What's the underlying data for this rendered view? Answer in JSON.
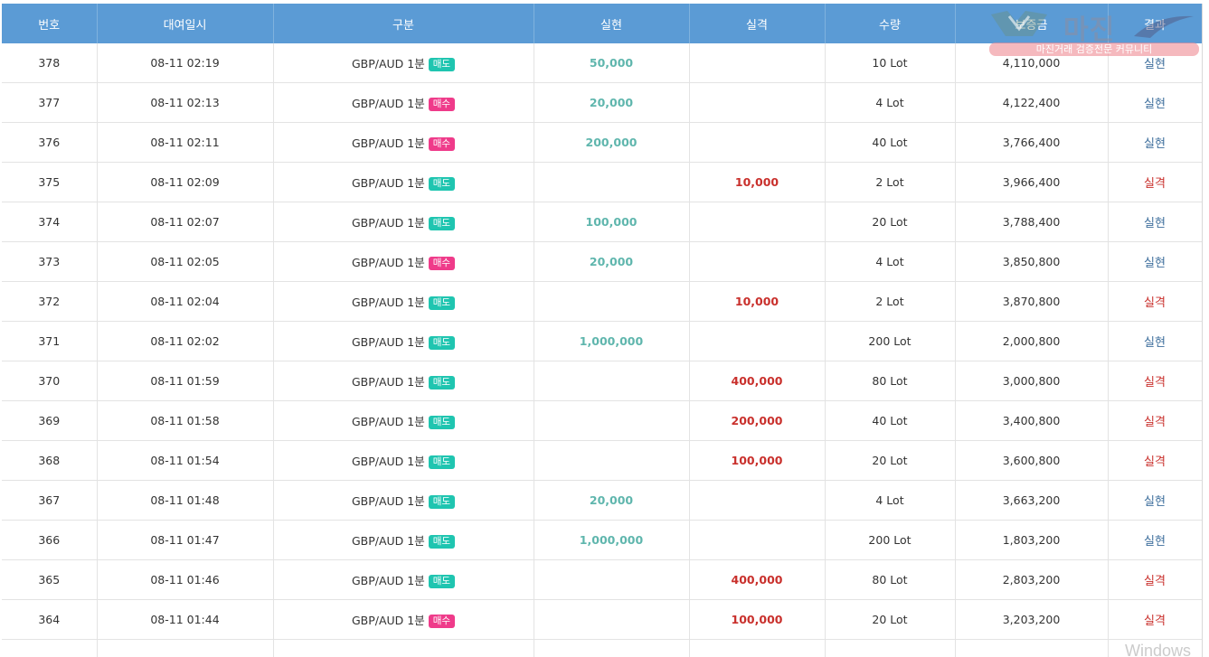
{
  "table": {
    "headers": [
      "번호",
      "대여일시",
      "구분",
      "실현",
      "실격",
      "수량",
      "보증금",
      "결과"
    ],
    "rows": [
      {
        "no": "378",
        "datetime": "08-11 02:19",
        "pair": "GBP/AUD 1분",
        "side": "매도",
        "side_type": "sell",
        "profit": "50,000",
        "loss": "",
        "qty": "10 Lot",
        "deposit": "4,110,000",
        "result": "실현",
        "result_type": "win"
      },
      {
        "no": "377",
        "datetime": "08-11 02:13",
        "pair": "GBP/AUD 1분",
        "side": "매수",
        "side_type": "buy",
        "profit": "20,000",
        "loss": "",
        "qty": "4 Lot",
        "deposit": "4,122,400",
        "result": "실현",
        "result_type": "win"
      },
      {
        "no": "376",
        "datetime": "08-11 02:11",
        "pair": "GBP/AUD 1분",
        "side": "매수",
        "side_type": "buy",
        "profit": "200,000",
        "loss": "",
        "qty": "40 Lot",
        "deposit": "3,766,400",
        "result": "실현",
        "result_type": "win"
      },
      {
        "no": "375",
        "datetime": "08-11 02:09",
        "pair": "GBP/AUD 1분",
        "side": "매도",
        "side_type": "sell",
        "profit": "",
        "loss": "10,000",
        "qty": "2 Lot",
        "deposit": "3,966,400",
        "result": "실격",
        "result_type": "loss"
      },
      {
        "no": "374",
        "datetime": "08-11 02:07",
        "pair": "GBP/AUD 1분",
        "side": "매도",
        "side_type": "sell",
        "profit": "100,000",
        "loss": "",
        "qty": "20 Lot",
        "deposit": "3,788,400",
        "result": "실현",
        "result_type": "win"
      },
      {
        "no": "373",
        "datetime": "08-11 02:05",
        "pair": "GBP/AUD 1분",
        "side": "매수",
        "side_type": "buy",
        "profit": "20,000",
        "loss": "",
        "qty": "4 Lot",
        "deposit": "3,850,800",
        "result": "실현",
        "result_type": "win"
      },
      {
        "no": "372",
        "datetime": "08-11 02:04",
        "pair": "GBP/AUD 1분",
        "side": "매도",
        "side_type": "sell",
        "profit": "",
        "loss": "10,000",
        "qty": "2 Lot",
        "deposit": "3,870,800",
        "result": "실격",
        "result_type": "loss"
      },
      {
        "no": "371",
        "datetime": "08-11 02:02",
        "pair": "GBP/AUD 1분",
        "side": "매도",
        "side_type": "sell",
        "profit": "1,000,000",
        "loss": "",
        "qty": "200 Lot",
        "deposit": "2,000,800",
        "result": "실현",
        "result_type": "win"
      },
      {
        "no": "370",
        "datetime": "08-11 01:59",
        "pair": "GBP/AUD 1분",
        "side": "매도",
        "side_type": "sell",
        "profit": "",
        "loss": "400,000",
        "qty": "80 Lot",
        "deposit": "3,000,800",
        "result": "실격",
        "result_type": "loss"
      },
      {
        "no": "369",
        "datetime": "08-11 01:58",
        "pair": "GBP/AUD 1분",
        "side": "매도",
        "side_type": "sell",
        "profit": "",
        "loss": "200,000",
        "qty": "40 Lot",
        "deposit": "3,400,800",
        "result": "실격",
        "result_type": "loss"
      },
      {
        "no": "368",
        "datetime": "08-11 01:54",
        "pair": "GBP/AUD 1분",
        "side": "매도",
        "side_type": "sell",
        "profit": "",
        "loss": "100,000",
        "qty": "20 Lot",
        "deposit": "3,600,800",
        "result": "실격",
        "result_type": "loss"
      },
      {
        "no": "367",
        "datetime": "08-11 01:48",
        "pair": "GBP/AUD 1분",
        "side": "매도",
        "side_type": "sell",
        "profit": "20,000",
        "loss": "",
        "qty": "4 Lot",
        "deposit": "3,663,200",
        "result": "실현",
        "result_type": "win"
      },
      {
        "no": "366",
        "datetime": "08-11 01:47",
        "pair": "GBP/AUD 1분",
        "side": "매도",
        "side_type": "sell",
        "profit": "1,000,000",
        "loss": "",
        "qty": "200 Lot",
        "deposit": "1,803,200",
        "result": "실현",
        "result_type": "win"
      },
      {
        "no": "365",
        "datetime": "08-11 01:46",
        "pair": "GBP/AUD 1분",
        "side": "매도",
        "side_type": "sell",
        "profit": "",
        "loss": "400,000",
        "qty": "80 Lot",
        "deposit": "2,803,200",
        "result": "실격",
        "result_type": "loss"
      },
      {
        "no": "364",
        "datetime": "08-11 01:44",
        "pair": "GBP/AUD 1분",
        "side": "매수",
        "side_type": "buy",
        "profit": "",
        "loss": "100,000",
        "qty": "20 Lot",
        "deposit": "3,203,200",
        "result": "실격",
        "result_type": "loss"
      }
    ]
  },
  "watermark": {
    "logo_text": "마진",
    "tagline": "마진거래 검증전문 커뮤니티"
  },
  "os_watermark": "Windows",
  "colors": {
    "header_bg": "#5b9bd5",
    "sell_badge": "#1fc5b0",
    "buy_badge": "#ef3b8a",
    "profit_text": "#5fb6ad",
    "loss_text": "#c9302c",
    "win_text": "#3d6e9c"
  }
}
